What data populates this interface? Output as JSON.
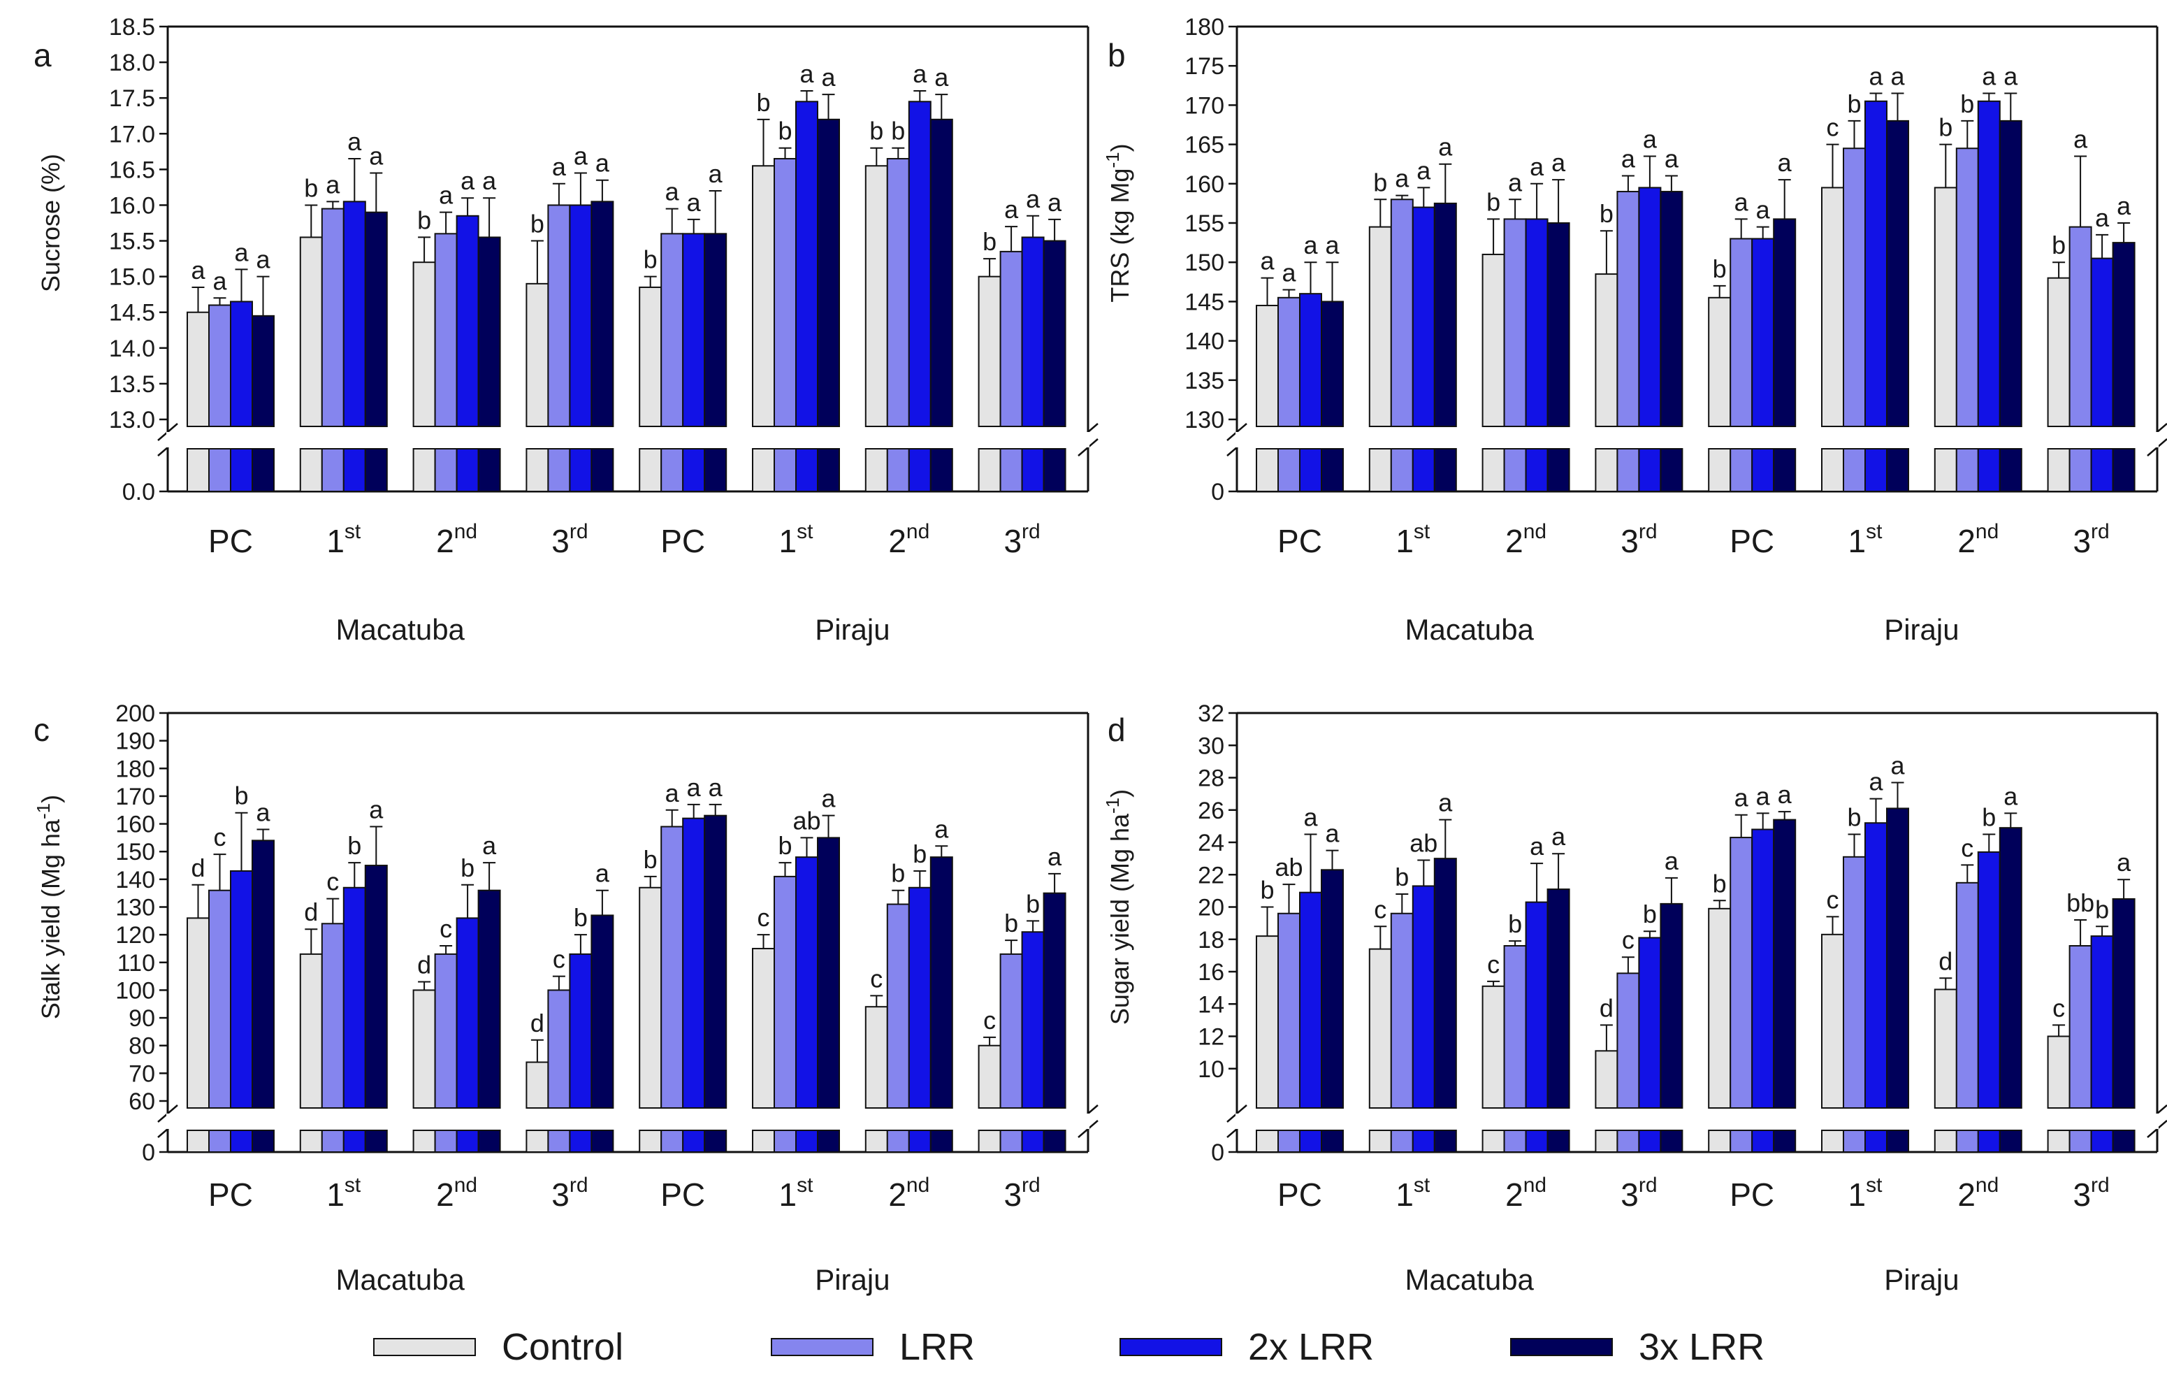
{
  "legend": [
    {
      "label": "Control",
      "color": "#e4e4e4"
    },
    {
      "label": "LRR",
      "color": "#8585ee"
    },
    {
      "label": "2x LRR",
      "color": "#1212e6"
    },
    {
      "label": "3x LRR",
      "color": "#00005a"
    }
  ],
  "chart_data": [
    {
      "panel": "a",
      "type": "bar",
      "ylabel": "Sucrose (%)",
      "ylim": [
        13.0,
        18.5
      ],
      "break_tick": "0.0",
      "yticks": [
        "18.5",
        "18.0",
        "17.5",
        "17.0",
        "16.5",
        "16.0",
        "15.5",
        "15.0",
        "14.5",
        "14.0",
        "13.5",
        "13.0"
      ],
      "categories": [
        {
          "base": "PC",
          "sup": ""
        },
        {
          "base": "1",
          "sup": "st"
        },
        {
          "base": "2",
          "sup": "nd"
        },
        {
          "base": "3",
          "sup": "rd"
        },
        {
          "base": "PC",
          "sup": ""
        },
        {
          "base": "1",
          "sup": "st"
        },
        {
          "base": "2",
          "sup": "nd"
        },
        {
          "base": "3",
          "sup": "rd"
        }
      ],
      "locations": [
        "Macatuba",
        "Piraju"
      ],
      "series": [
        {
          "name": "Control",
          "values": [
            14.5,
            15.55,
            15.2,
            14.9,
            14.85,
            16.55,
            16.55,
            15.0
          ],
          "errors": [
            0.35,
            0.45,
            0.35,
            0.6,
            0.15,
            0.65,
            0.25,
            0.25
          ],
          "letters": [
            "a",
            "b",
            "b",
            "b",
            "b",
            "b",
            "b",
            "b"
          ]
        },
        {
          "name": "LRR",
          "values": [
            14.6,
            15.95,
            15.6,
            16.0,
            15.6,
            16.65,
            16.65,
            15.35
          ],
          "errors": [
            0.1,
            0.1,
            0.3,
            0.3,
            0.35,
            0.15,
            0.15,
            0.35
          ],
          "letters": [
            "a",
            "a",
            "a",
            "a",
            "a",
            "b",
            "b",
            "a"
          ]
        },
        {
          "name": "2x LRR",
          "values": [
            14.65,
            16.05,
            15.85,
            16.0,
            15.6,
            17.45,
            17.45,
            15.55
          ],
          "errors": [
            0.45,
            0.6,
            0.25,
            0.45,
            0.2,
            0.15,
            0.15,
            0.3
          ],
          "letters": [
            "a",
            "a",
            "a",
            "a",
            "a",
            "a",
            "a",
            "a"
          ]
        },
        {
          "name": "3x LRR",
          "values": [
            14.45,
            15.9,
            15.55,
            16.05,
            15.6,
            17.2,
            17.2,
            15.5
          ],
          "errors": [
            0.55,
            0.55,
            0.55,
            0.3,
            0.6,
            0.35,
            0.35,
            0.3
          ],
          "letters": [
            "a",
            "a",
            "a",
            "a",
            "a",
            "a",
            "a",
            "a"
          ]
        }
      ]
    },
    {
      "panel": "b",
      "type": "bar",
      "ylabel": "TRS (kg Mg",
      "ylabel_sup": "-1",
      "ylabel_close": ")",
      "ylim": [
        130,
        180
      ],
      "break_tick": "0",
      "yticks": [
        "180",
        "175",
        "170",
        "165",
        "160",
        "155",
        "150",
        "145",
        "140",
        "135",
        "130"
      ],
      "categories": [
        {
          "base": "PC",
          "sup": ""
        },
        {
          "base": "1",
          "sup": "st"
        },
        {
          "base": "2",
          "sup": "nd"
        },
        {
          "base": "3",
          "sup": "rd"
        },
        {
          "base": "PC",
          "sup": ""
        },
        {
          "base": "1",
          "sup": "st"
        },
        {
          "base": "2",
          "sup": "nd"
        },
        {
          "base": "3",
          "sup": "rd"
        }
      ],
      "locations": [
        "Macatuba",
        "Piraju"
      ],
      "series": [
        {
          "name": "Control",
          "values": [
            144.5,
            154.5,
            151.0,
            148.5,
            145.5,
            159.5,
            159.5,
            148.0
          ],
          "errors": [
            3.5,
            3.5,
            4.5,
            5.5,
            1.5,
            5.5,
            5.5,
            2.0
          ],
          "letters": [
            "a",
            "b",
            "b",
            "b",
            "b",
            "c",
            "b",
            "b"
          ]
        },
        {
          "name": "LRR",
          "values": [
            145.5,
            158.0,
            155.5,
            159.0,
            153.0,
            164.5,
            164.5,
            154.5
          ],
          "errors": [
            1.0,
            0.5,
            2.5,
            2.0,
            2.5,
            3.5,
            3.5,
            9.0
          ],
          "letters": [
            "a",
            "a",
            "a",
            "a",
            "a",
            "b",
            "b",
            "a"
          ]
        },
        {
          "name": "2x LRR",
          "values": [
            146.0,
            157.0,
            155.5,
            159.5,
            153.0,
            170.5,
            170.5,
            150.5
          ],
          "errors": [
            4.0,
            2.5,
            4.5,
            4.0,
            1.5,
            1.0,
            1.0,
            3.0
          ],
          "letters": [
            "a",
            "a",
            "a",
            "a",
            "a",
            "a",
            "a",
            "a"
          ]
        },
        {
          "name": "3x LRR",
          "values": [
            145.0,
            157.5,
            155.0,
            159.0,
            155.5,
            168.0,
            168.0,
            152.5
          ],
          "errors": [
            5.0,
            5.0,
            5.5,
            2.0,
            5.0,
            3.5,
            3.5,
            2.5
          ],
          "letters": [
            "a",
            "a",
            "a",
            "a",
            "a",
            "a",
            "a",
            "a"
          ]
        }
      ]
    },
    {
      "panel": "c",
      "type": "bar",
      "ylabel": "Stalk yield (Mg ha",
      "ylabel_sup": "-1",
      "ylabel_close": ")",
      "ylim": [
        60,
        200
      ],
      "break_tick": "0",
      "yticks": [
        "200",
        "190",
        "180",
        "170",
        "160",
        "150",
        "140",
        "130",
        "120",
        "110",
        "100",
        "90",
        "80",
        "70",
        "60"
      ],
      "categories": [
        {
          "base": "PC",
          "sup": ""
        },
        {
          "base": "1",
          "sup": "st"
        },
        {
          "base": "2",
          "sup": "nd"
        },
        {
          "base": "3",
          "sup": "rd"
        },
        {
          "base": "PC",
          "sup": ""
        },
        {
          "base": "1",
          "sup": "st"
        },
        {
          "base": "2",
          "sup": "nd"
        },
        {
          "base": "3",
          "sup": "rd"
        }
      ],
      "locations": [
        "Macatuba",
        "Piraju"
      ],
      "series": [
        {
          "name": "Control",
          "values": [
            126,
            113,
            100,
            74,
            137,
            115,
            94,
            80
          ],
          "errors": [
            12,
            9,
            3,
            8,
            4,
            5,
            4,
            3
          ],
          "letters": [
            "d",
            "d",
            "d",
            "d",
            "b",
            "c",
            "c",
            "c"
          ]
        },
        {
          "name": "LRR",
          "values": [
            136,
            124,
            113,
            100,
            159,
            141,
            131,
            113
          ],
          "errors": [
            13,
            9,
            3,
            5,
            6,
            5,
            5,
            5
          ],
          "letters": [
            "c",
            "c",
            "c",
            "c",
            "a",
            "b",
            "b",
            "b"
          ]
        },
        {
          "name": "2x LRR",
          "values": [
            143,
            137,
            126,
            113,
            162,
            148,
            137,
            121
          ],
          "errors": [
            21,
            9,
            12,
            7,
            5,
            7,
            6,
            4
          ],
          "letters": [
            "b",
            "b",
            "b",
            "b",
            "a",
            "ab",
            "b",
            "b"
          ]
        },
        {
          "name": "3x LRR",
          "values": [
            154,
            145,
            136,
            127,
            163,
            155,
            148,
            135
          ],
          "errors": [
            4,
            14,
            10,
            9,
            4,
            8,
            4,
            7
          ],
          "letters": [
            "a",
            "a",
            "a",
            "a",
            "a",
            "a",
            "a",
            "a"
          ]
        }
      ]
    },
    {
      "panel": "d",
      "type": "bar",
      "ylabel": "Sugar yield (Mg ha",
      "ylabel_sup": "-1",
      "ylabel_close": ")",
      "ylim": [
        8,
        32
      ],
      "break_tick": "0",
      "yticks": [
        "32",
        "30",
        "28",
        "26",
        "24",
        "22",
        "20",
        "18",
        "16",
        "14",
        "12",
        "10"
      ],
      "categories": [
        {
          "base": "PC",
          "sup": ""
        },
        {
          "base": "1",
          "sup": "st"
        },
        {
          "base": "2",
          "sup": "nd"
        },
        {
          "base": "3",
          "sup": "rd"
        },
        {
          "base": "PC",
          "sup": ""
        },
        {
          "base": "1",
          "sup": "st"
        },
        {
          "base": "2",
          "sup": "nd"
        },
        {
          "base": "3",
          "sup": "rd"
        }
      ],
      "locations": [
        "Macatuba",
        "Piraju"
      ],
      "series": [
        {
          "name": "Control",
          "values": [
            18.2,
            17.4,
            15.1,
            11.1,
            19.9,
            18.3,
            14.9,
            12.0
          ],
          "errors": [
            1.8,
            1.4,
            0.3,
            1.6,
            0.5,
            1.1,
            0.7,
            0.7
          ],
          "letters": [
            "b",
            "c",
            "c",
            "d",
            "b",
            "c",
            "d",
            "c"
          ]
        },
        {
          "name": "LRR",
          "values": [
            19.6,
            19.6,
            17.6,
            15.9,
            24.3,
            23.1,
            21.5,
            17.6
          ],
          "errors": [
            1.8,
            1.2,
            0.3,
            1.0,
            1.4,
            1.4,
            1.1,
            1.6
          ],
          "letters": [
            "ab",
            "b",
            "b",
            "c",
            "a",
            "b",
            "c",
            "bb"
          ]
        },
        {
          "name": "2x LRR",
          "values": [
            20.9,
            21.3,
            20.3,
            18.1,
            24.8,
            25.2,
            23.4,
            18.2
          ],
          "errors": [
            3.6,
            1.6,
            2.4,
            0.4,
            1.0,
            1.5,
            1.1,
            0.6
          ],
          "letters": [
            "a",
            "ab",
            "a",
            "b",
            "a",
            "a",
            "b",
            "b"
          ]
        },
        {
          "name": "3x LRR",
          "values": [
            22.3,
            23.0,
            21.1,
            20.2,
            25.4,
            26.1,
            24.9,
            20.5
          ],
          "errors": [
            1.2,
            2.4,
            2.2,
            1.6,
            0.5,
            1.6,
            0.9,
            1.2
          ],
          "letters": [
            "a",
            "a",
            "a",
            "a",
            "a",
            "a",
            "a",
            "a"
          ]
        }
      ]
    }
  ]
}
